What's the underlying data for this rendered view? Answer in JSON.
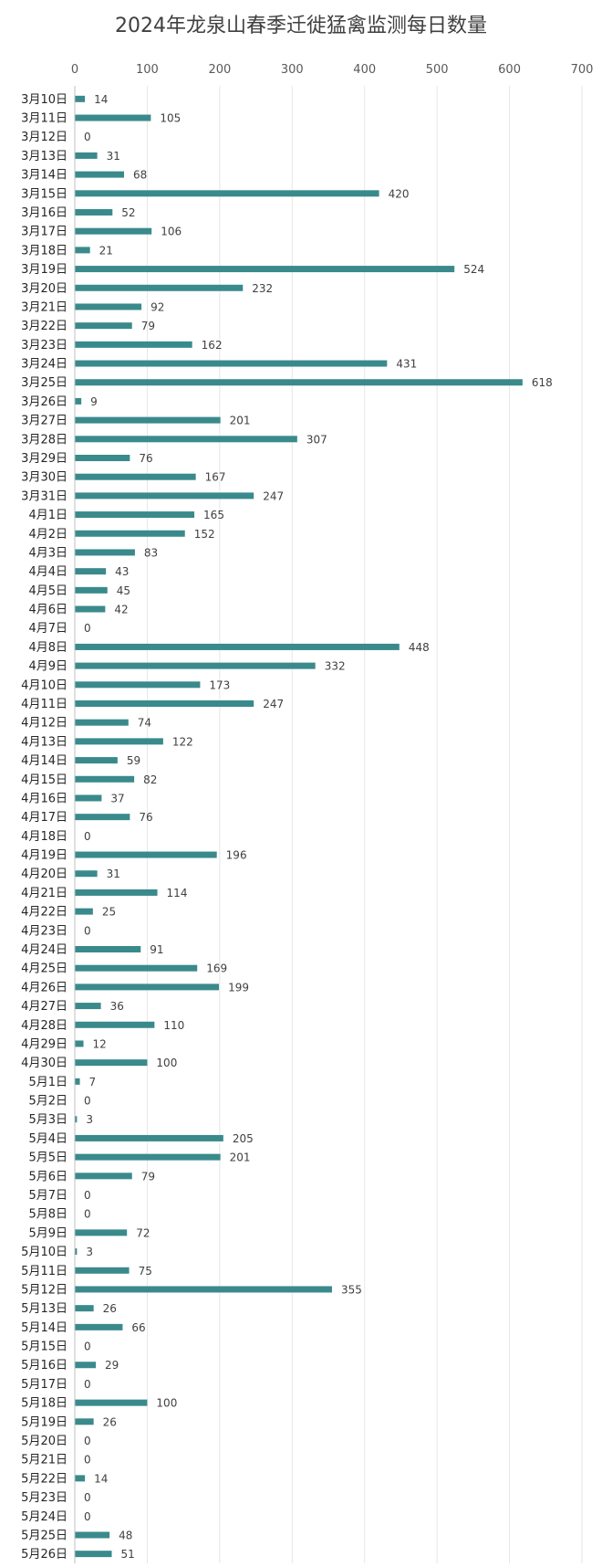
{
  "chart_data": {
    "type": "bar",
    "orientation": "horizontal",
    "title": "2024年龙泉山春季迁徙猛禽监测每日数量",
    "xlabel": "",
    "ylabel": "",
    "xlim": [
      0,
      700
    ],
    "ticks": [
      0,
      100,
      200,
      300,
      400,
      500,
      600,
      700
    ],
    "grid": true,
    "data_labels": true,
    "bar_color": "#3a8a8c",
    "categories": [
      "3月10日",
      "3月11日",
      "3月12日",
      "3月13日",
      "3月14日",
      "3月15日",
      "3月16日",
      "3月17日",
      "3月18日",
      "3月19日",
      "3月20日",
      "3月21日",
      "3月22日",
      "3月23日",
      "3月24日",
      "3月25日",
      "3月26日",
      "3月27日",
      "3月28日",
      "3月29日",
      "3月30日",
      "3月31日",
      "4月1日",
      "4月2日",
      "4月3日",
      "4月4日",
      "4月5日",
      "4月6日",
      "4月7日",
      "4月8日",
      "4月9日",
      "4月10日",
      "4月11日",
      "4月12日",
      "4月13日",
      "4月14日",
      "4月15日",
      "4月16日",
      "4月17日",
      "4月18日",
      "4月19日",
      "4月20日",
      "4月21日",
      "4月22日",
      "4月23日",
      "4月24日",
      "4月25日",
      "4月26日",
      "4月27日",
      "4月28日",
      "4月29日",
      "4月30日",
      "5月1日",
      "5月2日",
      "5月3日",
      "5月4日",
      "5月5日",
      "5月6日",
      "5月7日",
      "5月8日",
      "5月9日",
      "5月10日",
      "5月11日",
      "5月12日",
      "5月13日",
      "5月14日",
      "5月15日",
      "5月16日",
      "5月17日",
      "5月18日",
      "5月19日",
      "5月20日",
      "5月21日",
      "5月22日",
      "5月23日",
      "5月24日",
      "5月25日",
      "5月26日"
    ],
    "values": [
      14,
      105,
      0,
      31,
      68,
      420,
      52,
      106,
      21,
      524,
      232,
      92,
      79,
      162,
      431,
      618,
      9,
      201,
      307,
      76,
      167,
      247,
      165,
      152,
      83,
      43,
      45,
      42,
      0,
      448,
      332,
      173,
      247,
      74,
      122,
      59,
      82,
      37,
      76,
      0,
      196,
      31,
      114,
      25,
      0,
      91,
      169,
      199,
      36,
      110,
      12,
      100,
      7,
      0,
      3,
      205,
      201,
      79,
      0,
      0,
      72,
      3,
      75,
      355,
      26,
      66,
      0,
      29,
      0,
      100,
      26,
      0,
      0,
      14,
      0,
      0,
      48,
      51
    ]
  }
}
